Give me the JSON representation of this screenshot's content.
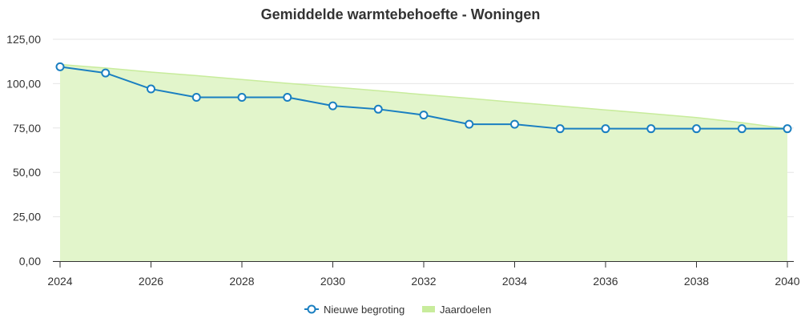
{
  "chart_data": {
    "type": "line",
    "title": "Gemiddelde warmtebehoefte - Woningen",
    "x": [
      2024,
      2025,
      2026,
      2027,
      2028,
      2029,
      2030,
      2031,
      2032,
      2033,
      2034,
      2035,
      2036,
      2037,
      2038,
      2039,
      2040
    ],
    "x_ticks": [
      "2024",
      "2026",
      "2028",
      "2030",
      "2032",
      "2034",
      "2036",
      "2038",
      "2040"
    ],
    "y_ticks": [
      "0,00",
      "25,00",
      "50,00",
      "75,00",
      "100,00",
      "125,00"
    ],
    "ylim": [
      0,
      125
    ],
    "xlim": [
      2024,
      2040
    ],
    "grid": true,
    "legend_position": "bottom",
    "series": [
      {
        "name": "Nieuwe begroting",
        "type": "line",
        "color": "#1a7fc1",
        "values": [
          109.5,
          106,
          97,
          92.3,
          92.3,
          92.3,
          87.5,
          85.6,
          82.3,
          77.1,
          77.1,
          74.6,
          74.6,
          74.6,
          74.6,
          74.6,
          74.6
        ]
      },
      {
        "name": "Jaardoelen",
        "type": "area",
        "color": "#c8ec9c",
        "values": [
          110.8,
          108.8,
          106.5,
          104.5,
          102.3,
          100.2,
          98.1,
          96.0,
          93.8,
          91.7,
          89.5,
          87.4,
          85.2,
          83.1,
          80.9,
          78.0,
          74.6
        ]
      }
    ]
  }
}
